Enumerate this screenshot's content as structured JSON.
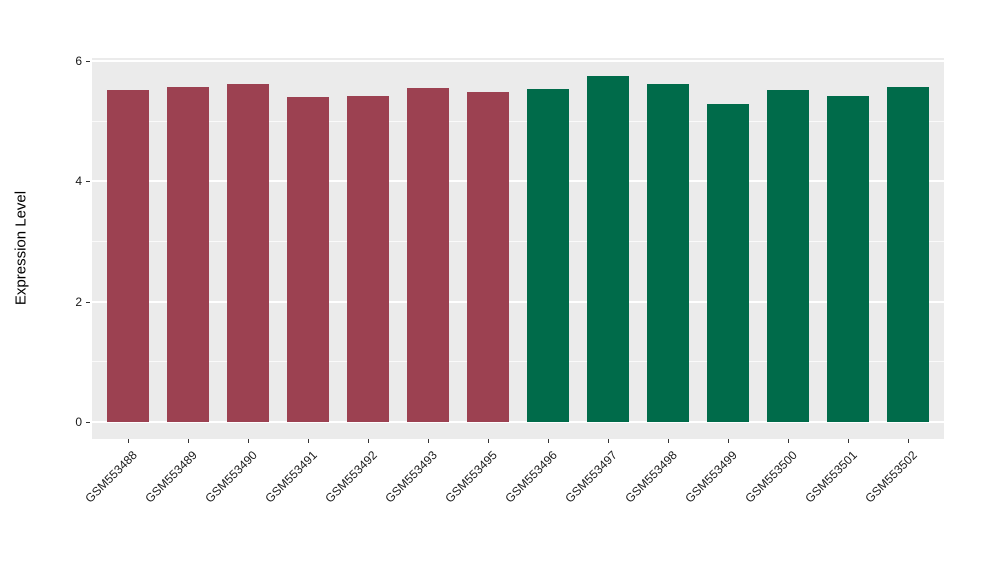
{
  "chart_data": {
    "type": "bar",
    "title": "",
    "xlabel": "",
    "ylabel": "Expression Level",
    "categories": [
      "GSM553488",
      "GSM553489",
      "GSM553490",
      "GSM553491",
      "GSM553492",
      "GSM553493",
      "GSM553495",
      "GSM553496",
      "GSM553497",
      "GSM553498",
      "GSM553499",
      "GSM553500",
      "GSM553501",
      "GSM553502"
    ],
    "values": [
      5.51,
      5.56,
      5.62,
      5.4,
      5.42,
      5.54,
      5.49,
      5.53,
      5.75,
      5.62,
      5.29,
      5.52,
      5.42,
      5.57
    ],
    "bar_colors": [
      "#9C4151",
      "#9C4151",
      "#9C4151",
      "#9C4151",
      "#9C4151",
      "#9C4151",
      "#9C4151",
      "#006B4A",
      "#006B4A",
      "#006B4A",
      "#006B4A",
      "#006B4A",
      "#006B4A",
      "#006B4A"
    ],
    "group_colors": {
      "group_1": "#9C4151",
      "group_2": "#006B4A"
    },
    "yticks": [
      "0",
      "2",
      "4",
      "6"
    ],
    "ytick_values": [
      0,
      2,
      4,
      6
    ],
    "minor_grid_values": [
      1,
      3,
      5
    ],
    "ylim": [
      0,
      6.04
    ],
    "grid": "on",
    "legend": "none",
    "panel_background": "#EBEBEB",
    "grid_color": "#FFFFFF",
    "tick_color": "#333333",
    "axis_text_color": "#1a1a1a"
  }
}
